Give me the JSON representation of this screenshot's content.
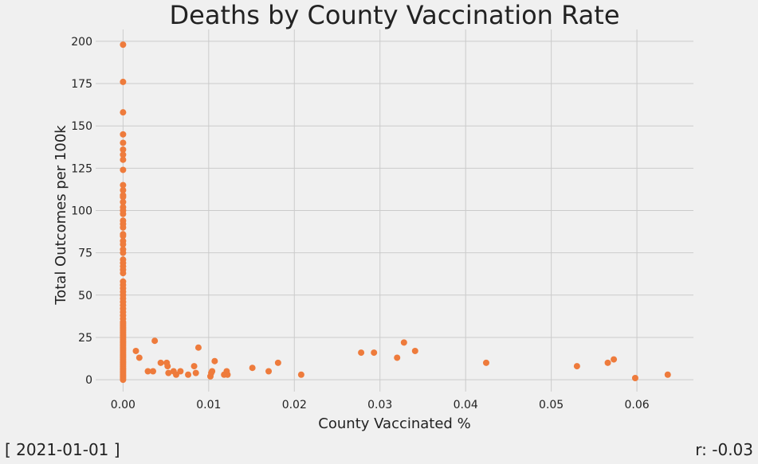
{
  "chart_data": {
    "type": "scatter",
    "title": "Deaths by County Vaccination Rate",
    "xlabel": "County Vaccinated %",
    "ylabel": "Total Outcomes per 100k",
    "xlim": [
      -0.0032,
      0.0666
    ],
    "ylim": [
      -7,
      207
    ],
    "xticks": [
      0.0,
      0.01,
      0.02,
      0.03,
      0.04,
      0.05,
      0.06
    ],
    "xtick_labels": [
      "0.00",
      "0.01",
      "0.02",
      "0.03",
      "0.04",
      "0.05",
      "0.06"
    ],
    "yticks": [
      0,
      25,
      50,
      75,
      100,
      125,
      150,
      175,
      200
    ],
    "ytick_labels": [
      "0",
      "25",
      "50",
      "75",
      "100",
      "125",
      "150",
      "175",
      "200"
    ],
    "grid": true,
    "colors": {
      "point": "#ee7b3c",
      "grid": "#cbcbcb",
      "background": "#f0f0f0",
      "text": "#222222"
    },
    "series": [
      {
        "x": [
          0,
          0,
          0,
          0,
          0,
          0,
          0,
          0,
          0,
          0,
          0,
          0,
          0,
          0,
          0,
          0,
          0,
          0,
          0,
          0,
          0,
          0,
          0,
          0,
          0,
          0,
          0,
          0,
          0,
          0,
          0,
          0,
          0,
          0,
          0,
          0,
          0,
          0,
          0,
          0,
          0,
          0,
          0,
          0,
          0,
          0,
          0,
          0,
          0,
          0,
          0,
          0,
          0,
          0,
          0,
          0,
          0,
          0,
          0,
          0,
          0,
          0,
          0,
          0,
          0,
          0,
          0,
          0,
          0,
          0,
          0,
          0,
          0,
          0,
          0,
          0,
          0,
          0,
          0.0015,
          0.0019,
          0.0029,
          0.0035,
          0.0037,
          0.0044,
          0.0051,
          0.0052,
          0.0053,
          0.0059,
          0.0062,
          0.0067,
          0.0076,
          0.0083,
          0.0085,
          0.0088,
          0.0102,
          0.0103,
          0.0104,
          0.0107,
          0.0118,
          0.0121,
          0.0122,
          0.0151,
          0.017,
          0.0181,
          0.0208,
          0.0278,
          0.0293,
          0.032,
          0.0328,
          0.0341,
          0.0424,
          0.053,
          0.0566,
          0.0573,
          0.0598,
          0.0636
        ],
        "y": [
          198,
          176,
          158,
          145,
          140,
          136,
          133,
          130,
          124,
          115,
          112,
          109,
          108,
          105,
          102,
          100,
          98,
          94,
          92,
          90,
          86,
          85,
          82,
          80,
          77,
          75,
          71,
          69,
          67,
          65,
          63,
          58,
          56,
          54,
          52,
          50,
          48,
          46,
          44,
          42,
          40,
          38,
          36,
          34,
          32,
          30,
          28,
          26,
          24,
          22,
          20,
          18,
          16,
          14,
          12,
          10,
          9,
          8,
          7,
          6,
          5,
          4,
          3,
          2,
          1,
          0,
          11,
          13,
          15,
          17,
          19,
          21,
          23,
          25,
          27,
          29,
          31,
          33,
          17,
          13,
          5,
          5,
          23,
          10,
          10,
          8,
          4,
          5,
          3,
          5,
          3,
          8,
          4,
          19,
          2,
          4,
          5,
          11,
          3,
          5,
          3,
          7,
          5,
          10,
          3,
          16,
          16,
          13,
          22,
          17,
          10,
          8,
          10,
          12,
          1,
          3
        ]
      }
    ]
  },
  "footer": {
    "date": "[ 2021-01-01 ]",
    "r": "r: -0.03"
  }
}
